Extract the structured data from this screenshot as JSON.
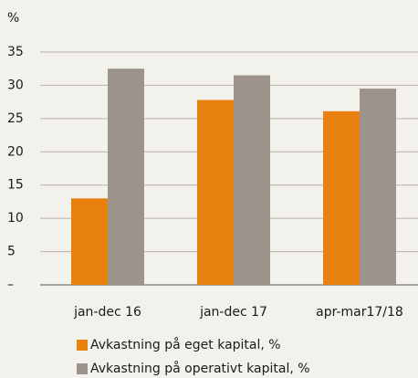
{
  "chart_data": {
    "type": "bar",
    "y_label": "%",
    "categories": [
      "jan-dec 16",
      "jan-dec 17",
      "apr-mar17/18"
    ],
    "series": [
      {
        "name": "Avkastning på eget kapital, %",
        "color": "#e8800f",
        "values": [
          13,
          27.8,
          26.1
        ]
      },
      {
        "name": "Avkastning på operativt kapital, %",
        "color": "#9c938a",
        "values": [
          32.5,
          31.5,
          29.5
        ]
      }
    ],
    "ylim": [
      0,
      35
    ],
    "yticks": [
      {
        "value": 0,
        "label": "–"
      },
      5,
      10,
      15,
      20,
      25,
      30,
      35
    ],
    "grid": true
  }
}
